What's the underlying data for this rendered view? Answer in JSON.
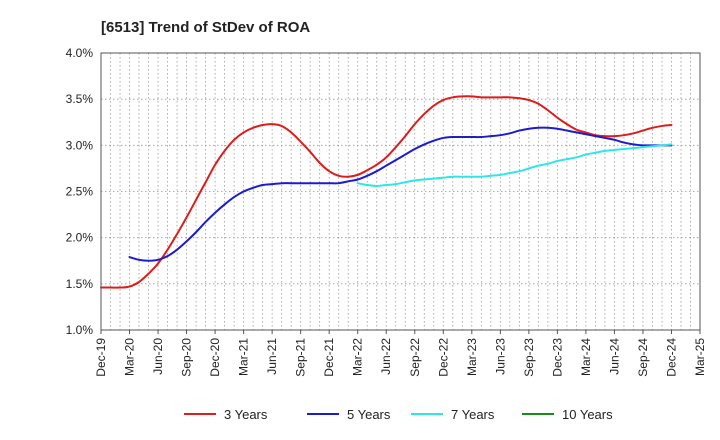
{
  "chart_data": {
    "type": "line",
    "title": "[6513]  Trend of StDev of ROA",
    "xlabel": "",
    "ylabel": "",
    "ylim": [
      1.0,
      4.0
    ],
    "yticks": [
      "1.0%",
      "1.5%",
      "2.0%",
      "2.5%",
      "3.0%",
      "3.5%",
      "4.0%"
    ],
    "x_tick_labels": [
      "Dec-19",
      "Mar-20",
      "Jun-20",
      "Sep-20",
      "Dec-20",
      "Mar-21",
      "Jun-21",
      "Sep-21",
      "Dec-21",
      "Mar-22",
      "Jun-22",
      "Sep-22",
      "Dec-22",
      "Mar-23",
      "Jun-23",
      "Sep-23",
      "Dec-23",
      "Mar-24",
      "Jun-24",
      "Sep-24",
      "Dec-24",
      "Mar-25"
    ],
    "grid": "dotted",
    "legend_position": "bottom",
    "series": [
      {
        "name": "3 Years",
        "color": "#dd1c1c",
        "x": [
          "Dec-19",
          "Jan-20",
          "Feb-20",
          "Mar-20",
          "Apr-20",
          "May-20",
          "Jun-20",
          "Jul-20",
          "Aug-20",
          "Sep-20",
          "Oct-20",
          "Nov-20",
          "Dec-20",
          "Jan-21",
          "Feb-21",
          "Mar-21",
          "Apr-21",
          "May-21",
          "Jun-21",
          "Jul-21",
          "Aug-21",
          "Sep-21",
          "Oct-21",
          "Nov-21",
          "Dec-21",
          "Jan-22",
          "Feb-22",
          "Mar-22",
          "Apr-22",
          "May-22",
          "Jun-22",
          "Jul-22",
          "Aug-22",
          "Sep-22",
          "Oct-22",
          "Nov-22",
          "Dec-22",
          "Jan-23",
          "Feb-23",
          "Mar-23",
          "Apr-23",
          "May-23",
          "Jun-23",
          "Jul-23",
          "Aug-23",
          "Sep-23",
          "Oct-23",
          "Nov-23",
          "Dec-23",
          "Jan-24",
          "Feb-24",
          "Mar-24",
          "Apr-24",
          "May-24",
          "Jun-24",
          "Jul-24",
          "Aug-24",
          "Sep-24",
          "Oct-24",
          "Nov-24",
          "Dec-24"
        ],
        "values": [
          1.46,
          1.46,
          1.46,
          1.47,
          1.52,
          1.61,
          1.72,
          1.87,
          2.04,
          2.22,
          2.41,
          2.6,
          2.79,
          2.94,
          3.06,
          3.14,
          3.19,
          3.22,
          3.23,
          3.21,
          3.14,
          3.04,
          2.93,
          2.81,
          2.72,
          2.67,
          2.66,
          2.68,
          2.73,
          2.79,
          2.87,
          2.98,
          3.1,
          3.23,
          3.34,
          3.43,
          3.49,
          3.52,
          3.53,
          3.53,
          3.52,
          3.52,
          3.52,
          3.52,
          3.51,
          3.49,
          3.45,
          3.38,
          3.3,
          3.23,
          3.17,
          3.14,
          3.11,
          3.1,
          3.1,
          3.11,
          3.13,
          3.16,
          3.19,
          3.21,
          3.22
        ]
      },
      {
        "name": "5 Years",
        "color": "#1c1ccc",
        "x": [
          "Mar-20",
          "Apr-20",
          "May-20",
          "Jun-20",
          "Jul-20",
          "Aug-20",
          "Sep-20",
          "Oct-20",
          "Nov-20",
          "Dec-20",
          "Jan-21",
          "Feb-21",
          "Mar-21",
          "Apr-21",
          "May-21",
          "Jun-21",
          "Jul-21",
          "Aug-21",
          "Sep-21",
          "Oct-21",
          "Nov-21",
          "Dec-21",
          "Jan-22",
          "Feb-22",
          "Mar-22",
          "Apr-22",
          "May-22",
          "Jun-22",
          "Jul-22",
          "Aug-22",
          "Sep-22",
          "Oct-22",
          "Nov-22",
          "Dec-22",
          "Jan-23",
          "Feb-23",
          "Mar-23",
          "Apr-23",
          "May-23",
          "Jun-23",
          "Jul-23",
          "Aug-23",
          "Sep-23",
          "Oct-23",
          "Nov-23",
          "Dec-23",
          "Jan-24",
          "Feb-24",
          "Mar-24",
          "Apr-24",
          "May-24",
          "Jun-24",
          "Jul-24",
          "Aug-24",
          "Sep-24",
          "Oct-24",
          "Nov-24",
          "Dec-24"
        ],
        "values": [
          1.79,
          1.76,
          1.75,
          1.76,
          1.8,
          1.87,
          1.96,
          2.06,
          2.17,
          2.27,
          2.36,
          2.44,
          2.5,
          2.54,
          2.57,
          2.58,
          2.59,
          2.59,
          2.59,
          2.59,
          2.59,
          2.59,
          2.59,
          2.61,
          2.63,
          2.67,
          2.72,
          2.78,
          2.84,
          2.9,
          2.96,
          3.01,
          3.05,
          3.08,
          3.09,
          3.09,
          3.09,
          3.09,
          3.1,
          3.11,
          3.13,
          3.16,
          3.18,
          3.19,
          3.19,
          3.18,
          3.16,
          3.14,
          3.12,
          3.1,
          3.08,
          3.06,
          3.03,
          3.01,
          3.0,
          3.0,
          3.0,
          3.0
        ]
      },
      {
        "name": "7 Years",
        "color": "#2ee6e6",
        "x": [
          "Mar-22",
          "Apr-22",
          "May-22",
          "Jun-22",
          "Jul-22",
          "Aug-22",
          "Sep-22",
          "Oct-22",
          "Nov-22",
          "Dec-22",
          "Jan-23",
          "Feb-23",
          "Mar-23",
          "Apr-23",
          "May-23",
          "Jun-23",
          "Jul-23",
          "Aug-23",
          "Sep-23",
          "Oct-23",
          "Nov-23",
          "Dec-23",
          "Jan-24",
          "Feb-24",
          "Mar-24",
          "Apr-24",
          "May-24",
          "Jun-24",
          "Jul-24",
          "Aug-24",
          "Sep-24",
          "Oct-24",
          "Nov-24",
          "Dec-24"
        ],
        "values": [
          2.59,
          2.57,
          2.56,
          2.57,
          2.58,
          2.6,
          2.62,
          2.63,
          2.64,
          2.65,
          2.66,
          2.66,
          2.66,
          2.66,
          2.67,
          2.68,
          2.7,
          2.72,
          2.75,
          2.78,
          2.8,
          2.83,
          2.85,
          2.87,
          2.9,
          2.92,
          2.94,
          2.95,
          2.96,
          2.97,
          2.98,
          2.99,
          3.0,
          3.01
        ]
      },
      {
        "name": "10 Years",
        "color": "#1a8a1a",
        "x": [],
        "values": []
      }
    ]
  }
}
